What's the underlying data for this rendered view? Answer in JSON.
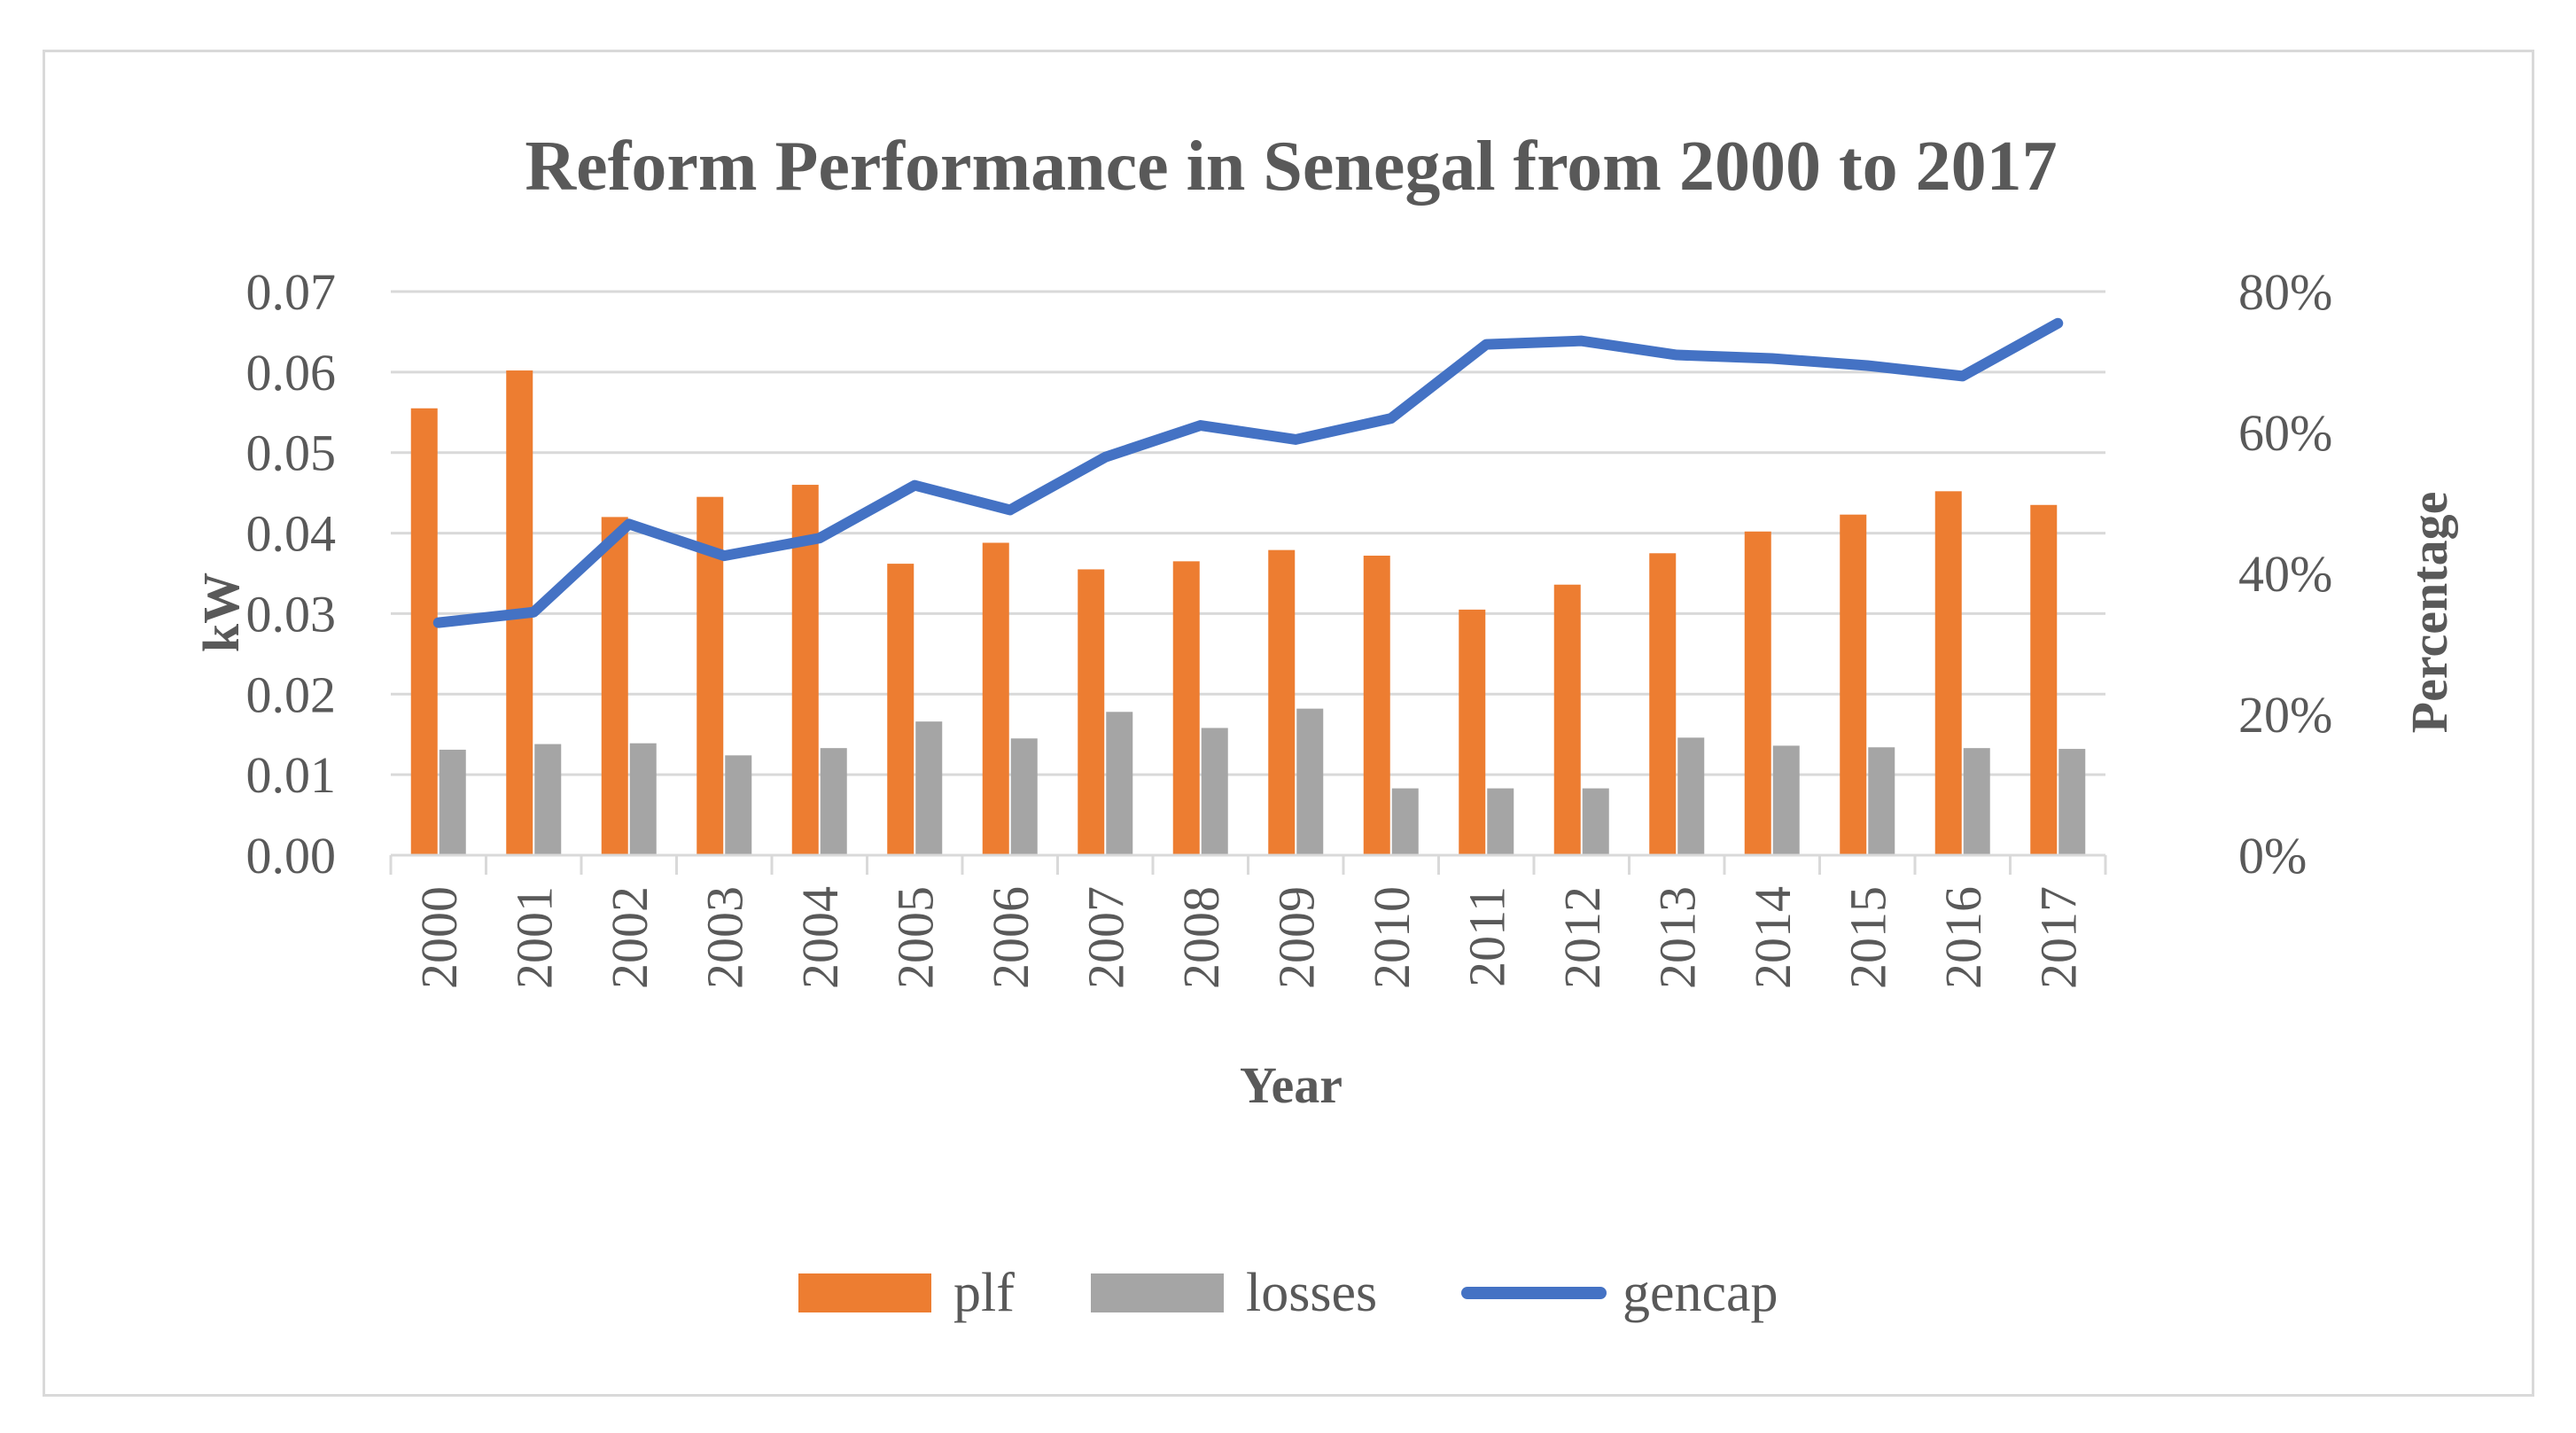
{
  "chart_data": {
    "type": "bar",
    "title": "Reform Performance in Senegal from 2000 to 2017",
    "xlabel": "Year",
    "ylabel": "kW",
    "y2label": "Percentage",
    "categories": [
      "2000",
      "2001",
      "2002",
      "2003",
      "2004",
      "2005",
      "2006",
      "2007",
      "2008",
      "2009",
      "2010",
      "2011",
      "2012",
      "2013",
      "2014",
      "2015",
      "2016",
      "2017"
    ],
    "ylim": [
      0,
      0.07
    ],
    "yticks": [
      "0.00",
      "0.01",
      "0.02",
      "0.03",
      "0.04",
      "0.05",
      "0.06",
      "0.07"
    ],
    "y2lim": [
      0,
      0.8
    ],
    "y2ticks": [
      "0%",
      "20%",
      "40%",
      "60%",
      "80%"
    ],
    "grid": true,
    "legend_position": "bottom",
    "series": [
      {
        "name": "plf",
        "type": "bar",
        "axis": "left",
        "color": "#ed7d31",
        "values": [
          0.0555,
          0.0602,
          0.042,
          0.0445,
          0.046,
          0.0362,
          0.0388,
          0.0355,
          0.0365,
          0.0379,
          0.0372,
          0.0305,
          0.0336,
          0.0375,
          0.0402,
          0.0423,
          0.0452,
          0.0435
        ]
      },
      {
        "name": "losses",
        "type": "bar",
        "axis": "left",
        "color": "#a5a5a5",
        "values": [
          0.0131,
          0.0138,
          0.0139,
          0.0124,
          0.0133,
          0.0166,
          0.0145,
          0.0178,
          0.0158,
          0.0182,
          0.0083,
          0.0083,
          0.0083,
          0.0146,
          0.0136,
          0.0134,
          0.0133,
          0.0132
        ]
      },
      {
        "name": "gencap",
        "type": "line",
        "axis": "right",
        "color": "#4472c4",
        "values": [
          0.33,
          0.345,
          0.47,
          0.425,
          0.45,
          0.525,
          0.49,
          0.565,
          0.61,
          0.59,
          0.62,
          0.725,
          0.73,
          0.71,
          0.705,
          0.695,
          0.68,
          0.755
        ]
      }
    ]
  }
}
